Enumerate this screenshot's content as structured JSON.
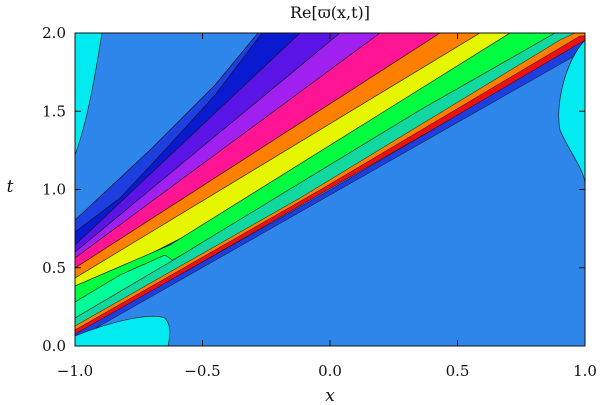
{
  "chart_data": {
    "type": "contour",
    "title": "Re[ϖ(x,t)]",
    "xlabel": "x",
    "ylabel": "t",
    "xlim": [
      -1.0,
      1.0
    ],
    "ylim": [
      0.0,
      2.0
    ],
    "x_ticks": [
      "−1.0",
      "−0.5",
      "0.0",
      "0.5",
      "1.0"
    ],
    "y_ticks": [
      "0.0",
      "0.5",
      "1.0",
      "1.5",
      "2.0"
    ],
    "x_tick_values": [
      -1.0,
      -0.5,
      0.0,
      0.5,
      1.0
    ],
    "y_tick_values": [
      0.0,
      0.5,
      1.0,
      1.5,
      2.0
    ],
    "legend": "none",
    "grid": false,
    "colors": {
      "background_level": "#2e86ea",
      "low_level_1": "#1e3fe0",
      "low_level_2": "#0a1ad0",
      "cyan_level": "#00eaf0",
      "violet_level": "#5a14e6",
      "purple_level": "#a020f0",
      "magenta_level": "#ff1493",
      "orange_level": "#ff8000",
      "yellow_level": "#e6f500",
      "green_level": "#00ff40",
      "mint_level": "#00ff99",
      "teal_level": "#10d8a0",
      "red_level": "#ee1010"
    }
  }
}
